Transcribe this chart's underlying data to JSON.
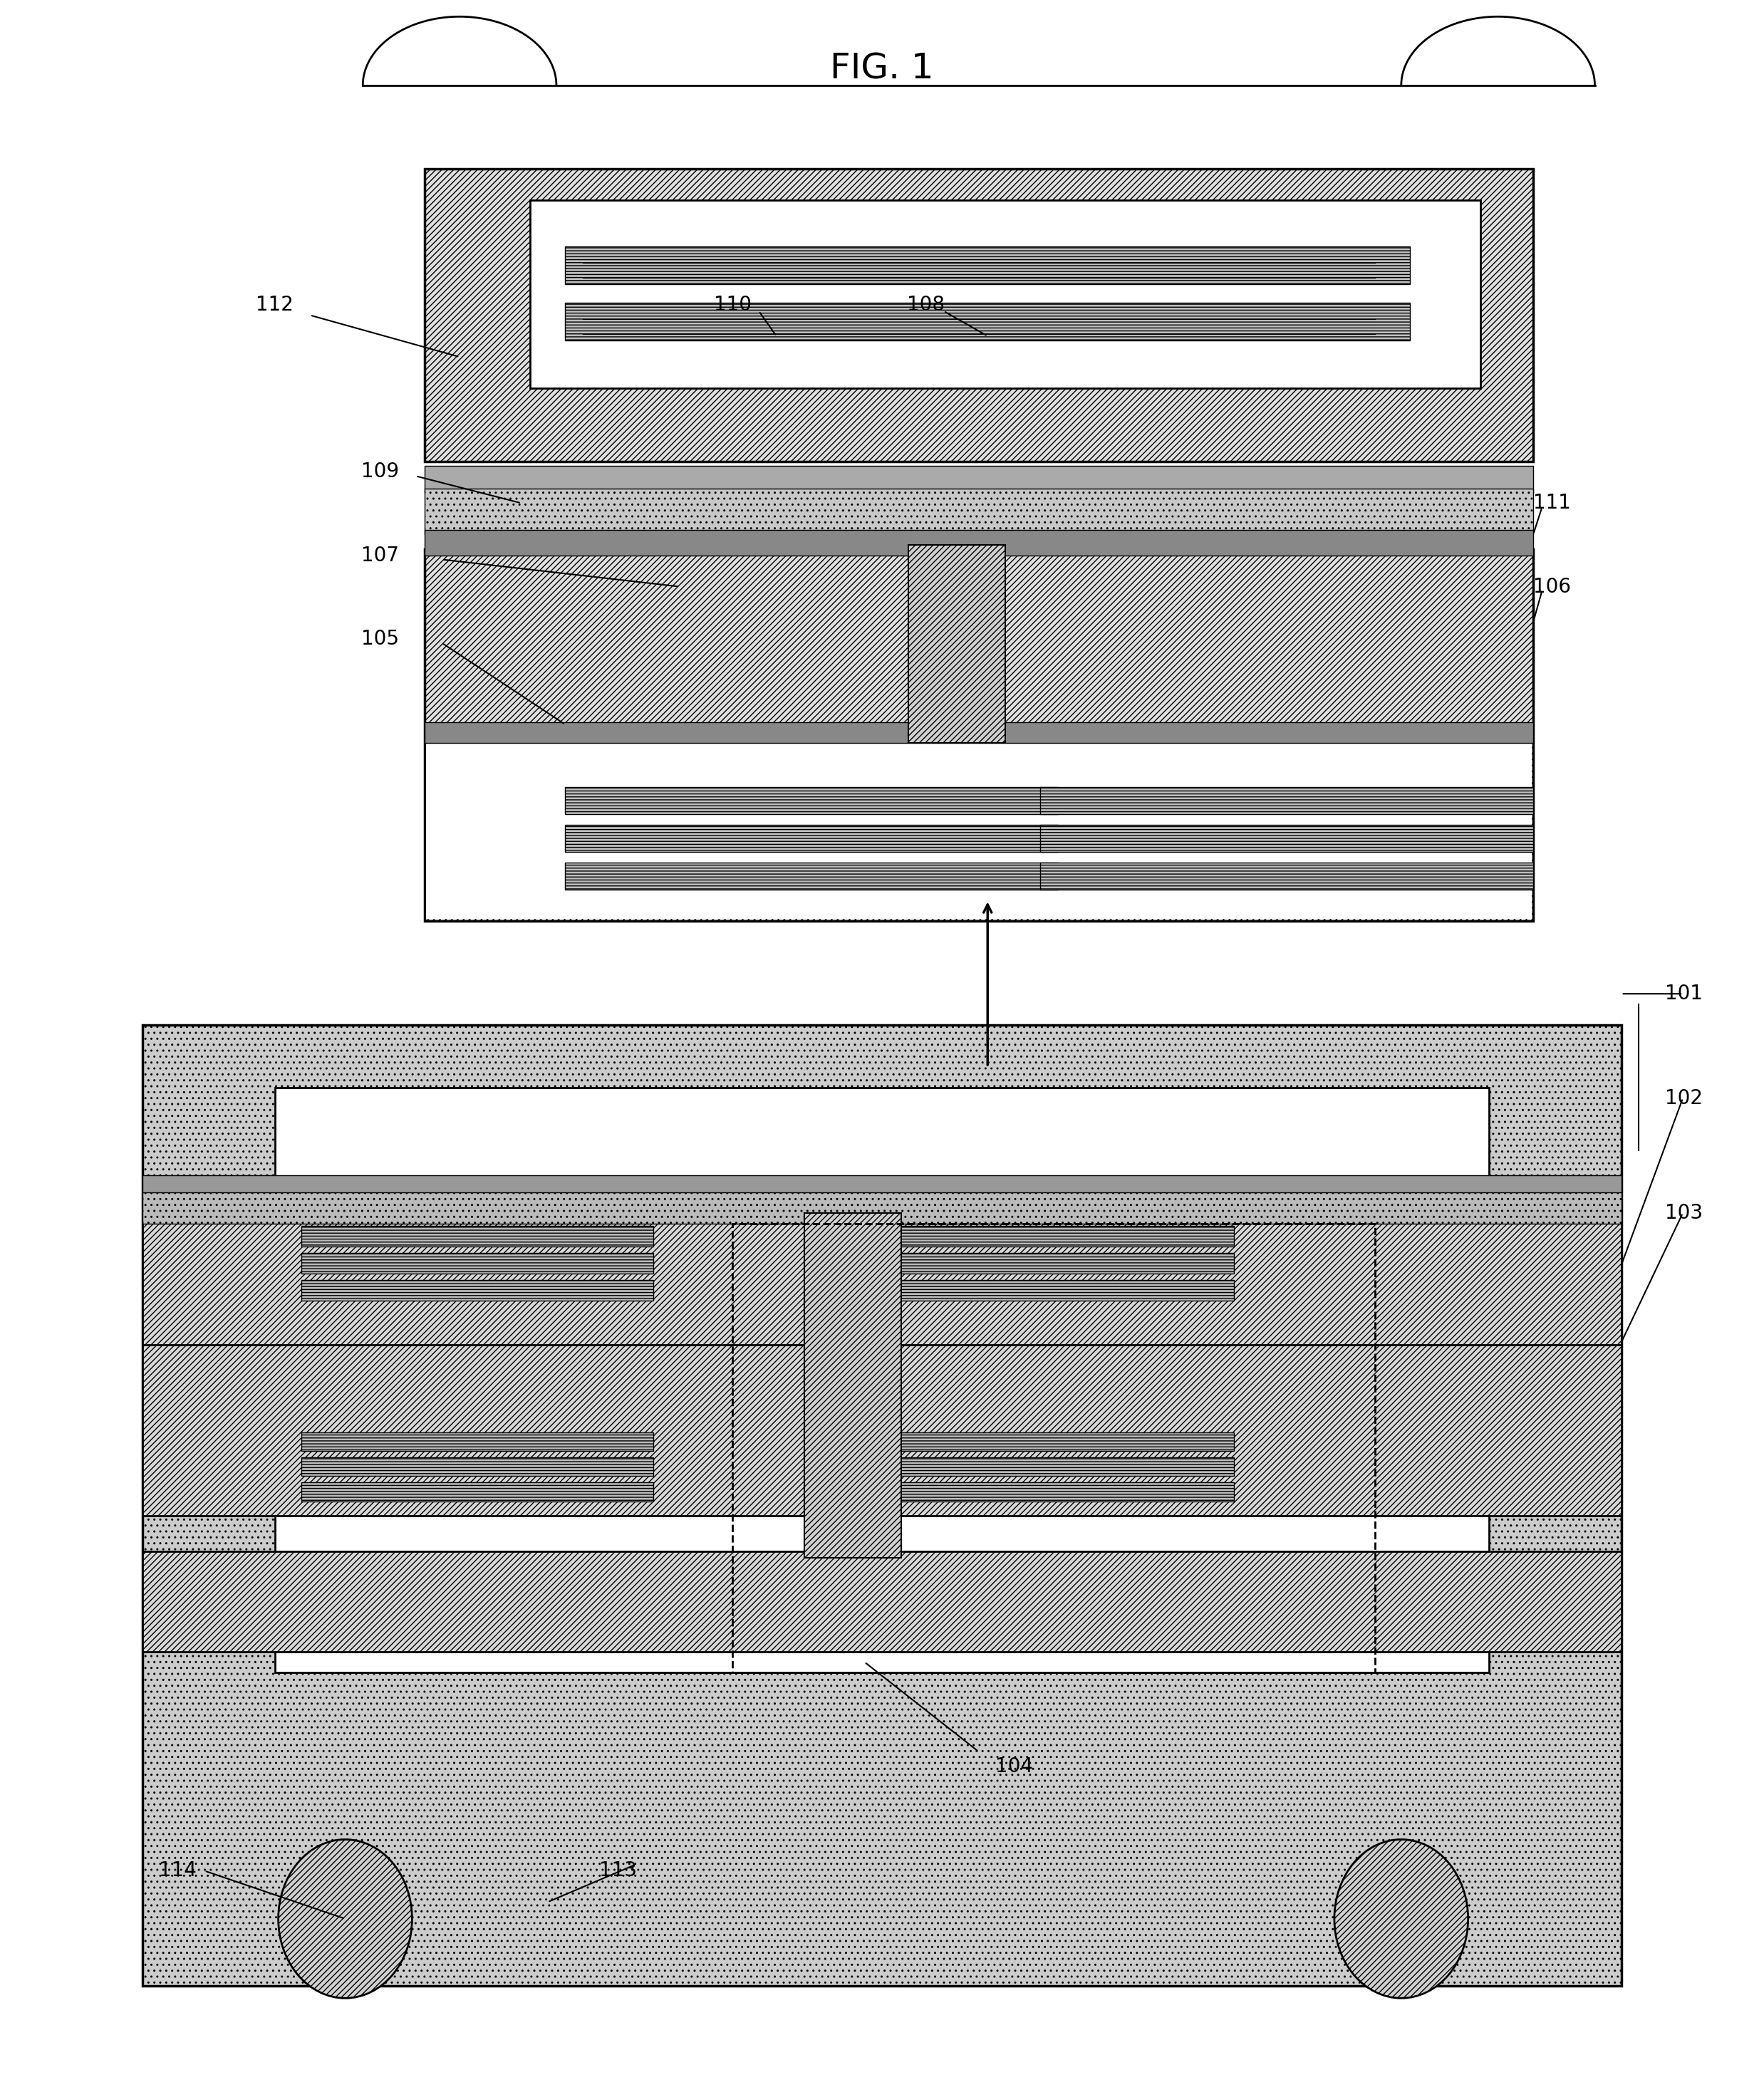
{
  "title": "FIG. 1",
  "bg": "#ffffff",
  "fw": 24.76,
  "fh": 29.37,
  "dpi": 100
}
